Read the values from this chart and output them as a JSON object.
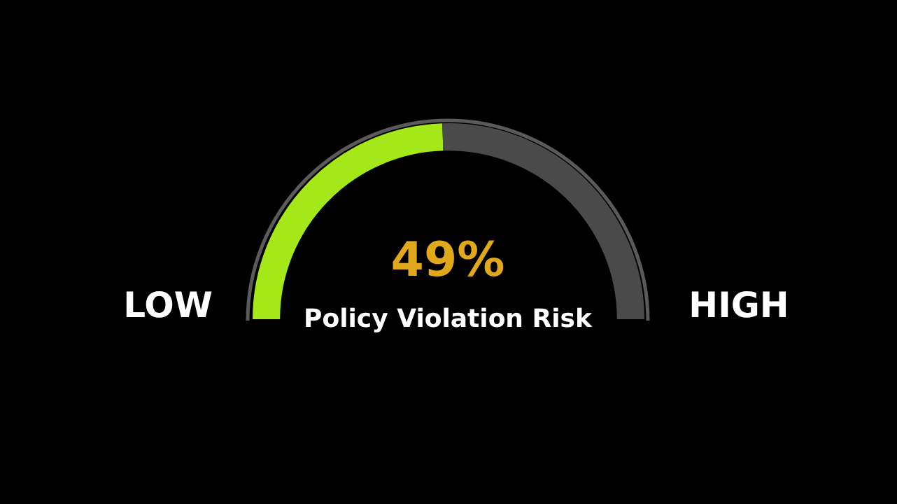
{
  "chart_data": {
    "type": "donut",
    "title": "Policy Violation Risk",
    "categories": [
      null,
      null
    ],
    "values": [
      49,
      51
    ],
    "colors": [
      "#a4e81a",
      "#4a4a4a"
    ],
    "value_labels": [
      "49%",
      null
    ],
    "annotations": [
      "LOW",
      "HIGH"
    ]
  }
}
